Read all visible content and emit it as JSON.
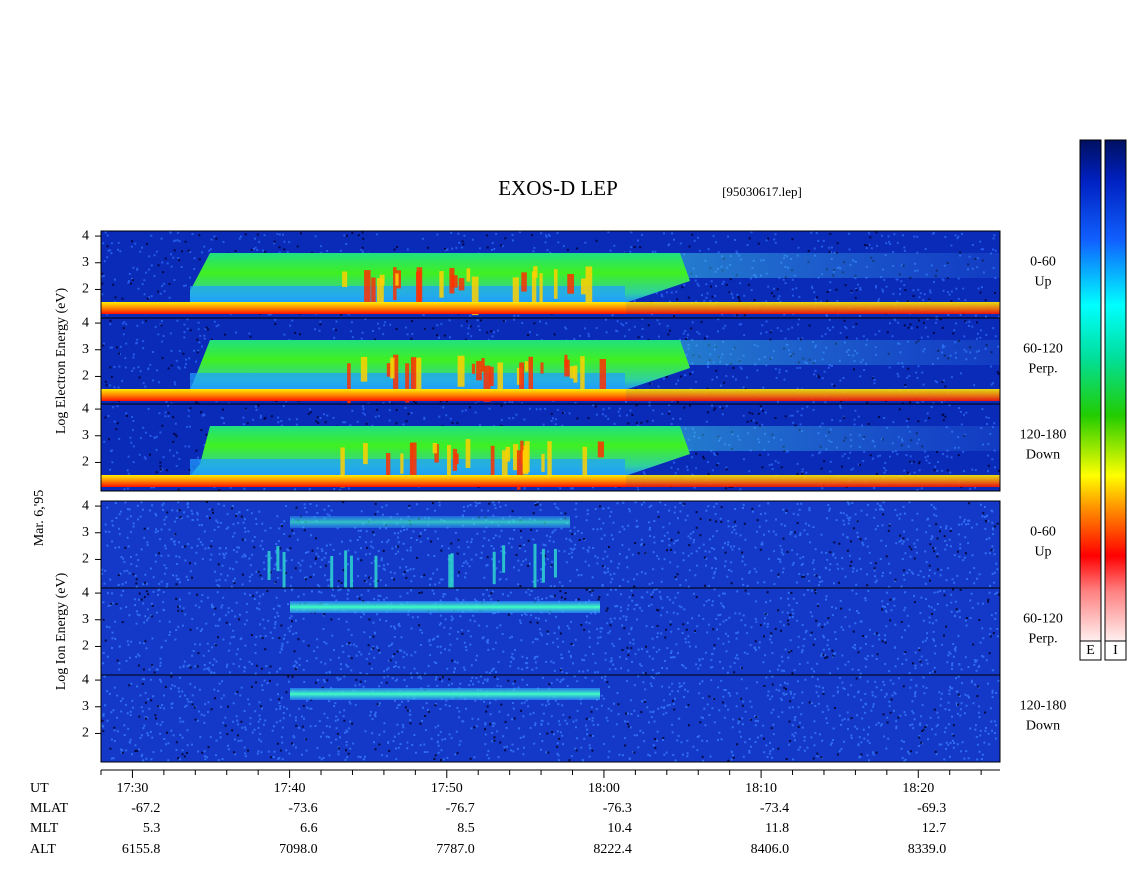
{
  "chart_data": {
    "type": "spectrogram",
    "title": "EXOS-D LEP",
    "subtitle": "[95030617.lep]",
    "date_label": "Mar. 6,'95",
    "xlim": [
      1048,
      1105.2
    ],
    "xticks": [
      {
        "value": 1050,
        "label": "17:30"
      },
      {
        "value": 1060,
        "label": "17:40"
      },
      {
        "value": 1070,
        "label": "17:50"
      },
      {
        "value": 1080,
        "label": "18:00"
      },
      {
        "value": 1090,
        "label": "18:10"
      },
      {
        "value": 1100,
        "label": "18:20"
      }
    ],
    "xminorticks": [
      1048,
      1052,
      1054,
      1056,
      1058,
      1062,
      1064,
      1066,
      1068,
      1072,
      1074,
      1076,
      1078,
      1082,
      1084,
      1086,
      1088,
      1092,
      1094,
      1096,
      1098,
      1102,
      1104
    ],
    "ylim": [
      0.93,
      4.19
    ],
    "yticks": [
      2,
      3,
      4
    ],
    "groups": [
      {
        "ylabel": "Log Electron Energy (eV)",
        "panels": [
          {
            "label": [
              "0-60",
              "Up"
            ]
          },
          {
            "label": [
              "60-120",
              "Perp."
            ]
          },
          {
            "label": [
              "120-180",
              "Down"
            ]
          }
        ]
      },
      {
        "ylabel": "Log Ion Energy (eV)",
        "panels": [
          {
            "label": [
              "0-60",
              "Up"
            ]
          },
          {
            "label": [
              "60-120",
              "Perp."
            ]
          },
          {
            "label": [
              "120-180",
              "Down"
            ]
          }
        ]
      }
    ],
    "ephemeris": [
      {
        "name": "UT",
        "values": null
      },
      {
        "name": "MLAT",
        "values": [
          "-67.2",
          "-73.6",
          "-76.7",
          "-76.3",
          "-73.4",
          "-69.3"
        ]
      },
      {
        "name": "MLT",
        "values": [
          "5.3",
          "6.6",
          "8.5",
          "10.4",
          "11.8",
          "12.7"
        ]
      },
      {
        "name": "ALT",
        "values": [
          "6155.8",
          "7098.0",
          "7787.0",
          "8222.4",
          "8406.0",
          "8339.0"
        ]
      }
    ],
    "colorbar_labels": [
      "E",
      "I"
    ]
  }
}
